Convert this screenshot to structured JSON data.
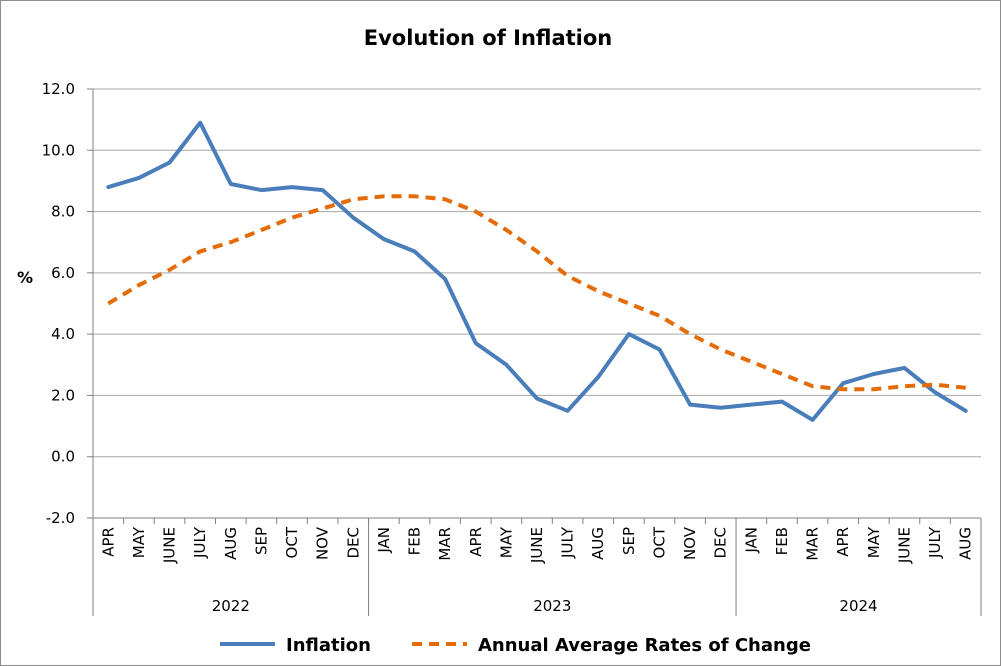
{
  "chart_data": {
    "type": "line",
    "title": "Evolution of Inflation",
    "ylabel": "%",
    "xlabel": "",
    "ylim": [
      -2.0,
      12.0
    ],
    "yticks": [
      "-2.0",
      "0.0",
      "2.0",
      "4.0",
      "6.0",
      "8.0",
      "10.0",
      "12.0"
    ],
    "grid": true,
    "legend": "bottom",
    "categories": [
      "APR",
      "MAY",
      "JUNE",
      "JULY",
      "AUG",
      "SEP",
      "OCT",
      "NOV",
      "DEC",
      "JAN",
      "FEB",
      "MAR",
      "APR",
      "MAY",
      "JUNE",
      "JULY",
      "AUG",
      "SEP",
      "OCT",
      "NOV",
      "DEC",
      "JAN",
      "FEB",
      "MAR",
      "APR",
      "MAY",
      "JUNE",
      "JULY",
      "AUG"
    ],
    "groups": [
      {
        "label": "2022",
        "count": 9
      },
      {
        "label": "2023",
        "count": 12
      },
      {
        "label": "2024",
        "count": 8
      }
    ],
    "series": [
      {
        "name": "Inflation",
        "color": "#4a7ebb",
        "style": "solid",
        "values": [
          8.8,
          9.1,
          9.6,
          10.9,
          8.9,
          8.7,
          8.8,
          8.7,
          7.8,
          7.1,
          6.7,
          5.8,
          3.7,
          3.0,
          1.9,
          1.5,
          2.6,
          4.0,
          3.5,
          1.7,
          1.6,
          1.7,
          1.8,
          1.2,
          2.4,
          2.7,
          2.9,
          2.1,
          1.5
        ]
      },
      {
        "name": "Annual Average Rates of Change",
        "color": "#e36c09",
        "style": "dashed",
        "values": [
          5.0,
          5.6,
          6.1,
          6.7,
          7.0,
          7.4,
          7.8,
          8.1,
          8.4,
          8.5,
          8.5,
          8.4,
          8.0,
          7.4,
          6.7,
          5.9,
          5.4,
          5.0,
          4.6,
          4.0,
          3.5,
          3.1,
          2.7,
          2.3,
          2.2,
          2.2,
          2.3,
          2.35,
          2.25
        ]
      }
    ]
  }
}
